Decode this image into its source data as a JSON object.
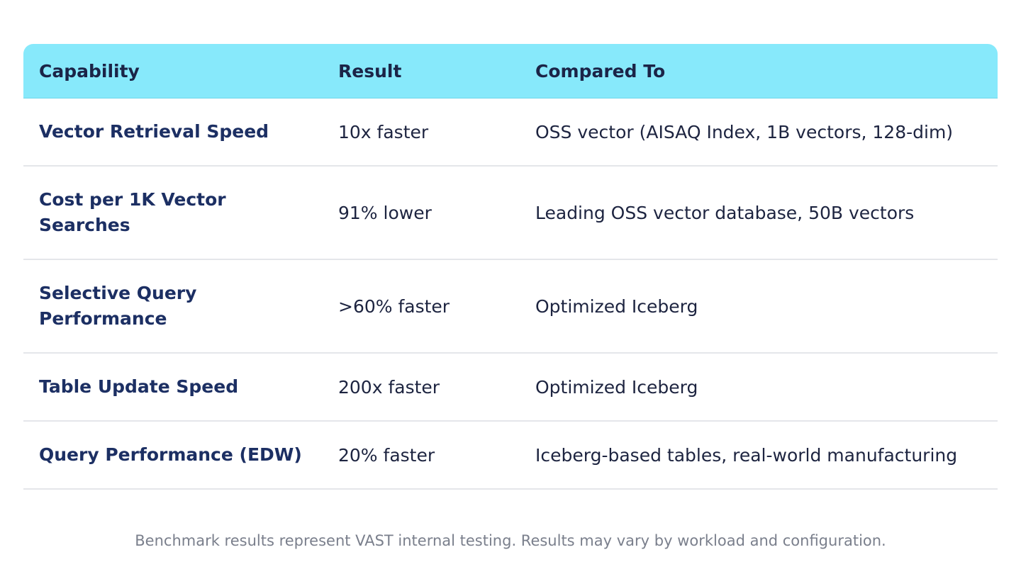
{
  "table": {
    "headers": {
      "capability": "Capability",
      "result": "Result",
      "compared_to": "Compared To"
    },
    "rows": [
      {
        "capability": "Vector Retrieval Speed",
        "result": "10x faster",
        "compared_to": "OSS vector (AISAQ Index, 1B vectors, 128-dim)"
      },
      {
        "capability": "Cost per 1K Vector Searches",
        "result": "91% lower",
        "compared_to": "Leading OSS vector database, 50B vectors"
      },
      {
        "capability": "Selective Query Performance",
        "result": ">60% faster",
        "compared_to": "Optimized Iceberg"
      },
      {
        "capability": "Table Update Speed",
        "result": "200x faster",
        "compared_to": "Optimized Iceberg"
      },
      {
        "capability": "Query Performance (EDW)",
        "result": "20% faster",
        "compared_to": "Iceberg-based tables, real-world manufacturing"
      }
    ]
  },
  "footnote": "Benchmark results represent VAST internal testing. Results may vary by workload and configuration.",
  "colors": {
    "header_bg": "#87e9fb",
    "capability_text": "#1c2f63",
    "body_text": "#1d2440",
    "footnote_text": "#7a7f8c",
    "divider": "#e4e6ea"
  }
}
